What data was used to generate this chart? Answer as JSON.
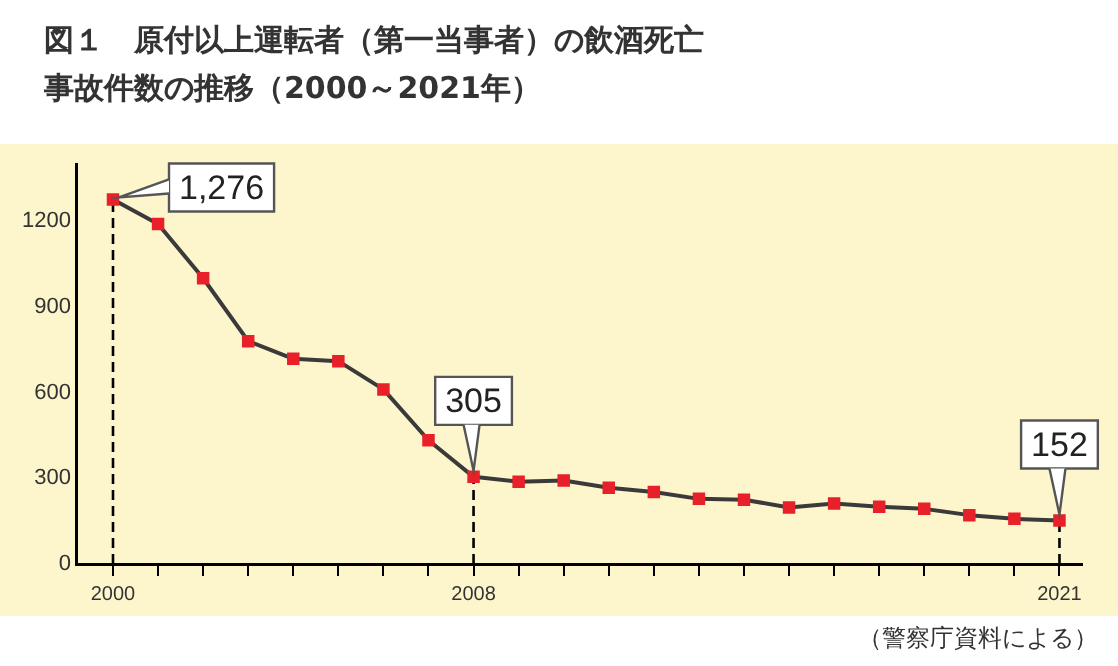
{
  "chart_data": {
    "type": "line",
    "title": "図１　原付以上運転者（第一当事者）の飲酒死亡事故件数の推移（2000～2021年）",
    "x": [
      2000,
      2001,
      2002,
      2003,
      2004,
      2005,
      2006,
      2007,
      2008,
      2009,
      2010,
      2011,
      2012,
      2013,
      2014,
      2015,
      2016,
      2017,
      2018,
      2019,
      2020,
      2021
    ],
    "series": [
      {
        "color": "#3a3a3a",
        "values": [
          1276,
          1190,
          1000,
          780,
          718,
          710,
          611,
          433,
          305,
          288,
          292,
          267,
          252,
          228,
          225,
          198,
          212,
          200,
          193,
          171,
          158,
          152
        ],
        "value_labels": [
          "1,276",
          null,
          null,
          null,
          null,
          null,
          null,
          null,
          "305",
          null,
          null,
          null,
          null,
          null,
          null,
          null,
          null,
          null,
          null,
          null,
          null,
          "152"
        ]
      }
    ],
    "marker": "square",
    "xlim": [
      1999.2,
      2021.5
    ],
    "xticks": [
      {
        "value": 2000,
        "label": "2000"
      },
      {
        "value": 2001,
        "label": null
      },
      {
        "value": 2002,
        "label": null
      },
      {
        "value": 2003,
        "label": null
      },
      {
        "value": 2004,
        "label": null
      },
      {
        "value": 2005,
        "label": null
      },
      {
        "value": 2006,
        "label": null
      },
      {
        "value": 2007,
        "label": null
      },
      {
        "value": 2008,
        "label": "2008"
      },
      {
        "value": 2009,
        "label": null
      },
      {
        "value": 2010,
        "label": null
      },
      {
        "value": 2011,
        "label": null
      },
      {
        "value": 2012,
        "label": null
      },
      {
        "value": 2013,
        "label": null
      },
      {
        "value": 2014,
        "label": null
      },
      {
        "value": 2015,
        "label": null
      },
      {
        "value": 2016,
        "label": null
      },
      {
        "value": 2017,
        "label": null
      },
      {
        "value": 2018,
        "label": null
      },
      {
        "value": 2019,
        "label": null
      },
      {
        "value": 2020,
        "label": null
      },
      {
        "value": 2021,
        "label": "2021"
      }
    ],
    "ylim": [
      0,
      1400
    ],
    "yticks": [
      0,
      300,
      600,
      900,
      1200
    ],
    "ref_lines": [
      {
        "axis": "x",
        "value": 2000,
        "line_style": "dashed",
        "color": "#000000"
      },
      {
        "axis": "x",
        "value": 2008,
        "line_style": "dashed",
        "color": "#000000"
      },
      {
        "axis": "x",
        "value": 2021,
        "line_style": "dashed",
        "color": "#000000"
      }
    ],
    "grid": false,
    "legend": false,
    "annotations": [
      "（警察庁資料による）"
    ]
  }
}
